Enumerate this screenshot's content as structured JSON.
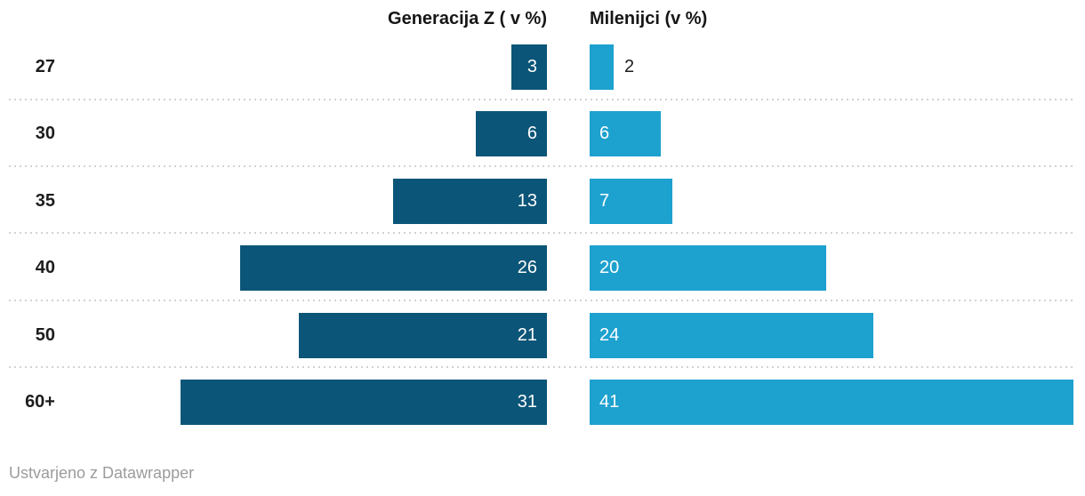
{
  "header": {
    "left_label": "Generacija Z ( v %)",
    "right_label": "Milenijci (v %)"
  },
  "footer": {
    "text": "Ustvarjeno z Datawrapper"
  },
  "colors": {
    "generacija_z_bar": "#0b5578",
    "milenijci_bar": "#1da1cf",
    "value_label_inside": "#ffffff",
    "value_label_outside": "#1d1d1d",
    "category_label": "#1d1d1d",
    "header_text": "#161616",
    "separator": "#d2d2d2",
    "footer_text": "#9c9c9c"
  },
  "chart_data": {
    "type": "bar",
    "layout": "split-columns-horizontal",
    "categories": [
      "27",
      "30",
      "35",
      "40",
      "50",
      "60+"
    ],
    "series": [
      {
        "name": "Generacija Z ( v %)",
        "values": [
          3,
          6,
          13,
          26,
          21,
          31
        ],
        "color": "#0b5578",
        "direction": "grows-right-to-left",
        "value_labels": "inside-right, white"
      },
      {
        "name": "Milenijci (v %)",
        "values": [
          2,
          6,
          7,
          20,
          24,
          41
        ],
        "color": "#1da1cf",
        "direction": "grows-left-to-right",
        "value_labels": "inside-left white; outside dark when bar too small"
      }
    ],
    "value_unit": "%",
    "xlim": [
      0,
      41
    ],
    "grid": "dotted horizontal separators between rows",
    "legend_position": "column headers above bars"
  }
}
